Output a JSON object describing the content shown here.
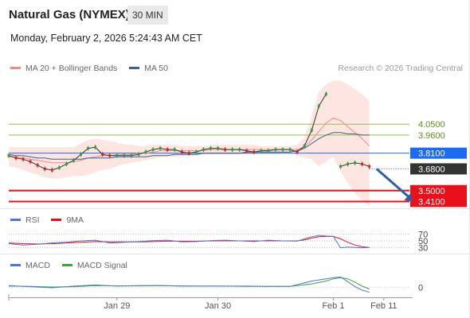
{
  "header": {
    "title": "Natural Gas (NYMEX)",
    "timeframe": "30 MIN",
    "datetime": "Monday, February 2, 2026 5:24:43 AM CET",
    "credit": "Research © 2026 Trading Central"
  },
  "colors": {
    "bollinger_fill": "#fde0dd",
    "bollinger_line": "#f08a8a",
    "ma50": "#3f5f8f",
    "candle": "#2e9e3e",
    "resistance_line": "#8fc24a",
    "pivot": "#1e6bf0",
    "support": "#e8101a",
    "current": "#333333",
    "rsi": "#4f74d8",
    "rsi_ma": "#e8101a",
    "macd": "#4f74d8",
    "macd_signal": "#3aa53a",
    "arrow": "#2f5fa3"
  },
  "chart_data": [
    {
      "type": "line",
      "name": "price",
      "legend": [
        {
          "label": "MA 20 + Bollinger Bands",
          "color": "#f08a8a"
        },
        {
          "label": "MA 50",
          "color": "#3f5f8f"
        }
      ],
      "ylim": [
        3.38,
        4.42
      ],
      "levels": [
        {
          "label": "4.0500",
          "value": 4.05,
          "kind": "resistance"
        },
        {
          "label": "3.9600",
          "value": 3.96,
          "kind": "resistance"
        },
        {
          "label": "3.8100",
          "value": 3.81,
          "kind": "pivot"
        },
        {
          "label": "3.6800",
          "value": 3.68,
          "kind": "current"
        },
        {
          "label": "3.5000",
          "value": 3.5,
          "kind": "support"
        },
        {
          "label": "3.4100",
          "value": 3.41,
          "kind": "support"
        }
      ],
      "x": [
        0,
        2,
        4,
        6,
        8,
        10,
        12,
        14,
        16,
        18,
        20,
        22,
        24,
        26,
        28,
        30,
        32,
        34,
        36,
        38,
        40,
        42,
        44,
        46,
        48,
        50,
        52,
        54,
        56,
        58,
        60,
        62,
        64,
        66,
        68,
        70,
        72,
        74,
        76,
        78,
        80,
        82,
        84,
        86,
        88
      ],
      "price": [
        3.79,
        3.77,
        3.76,
        3.74,
        3.71,
        3.68,
        3.67,
        3.69,
        3.72,
        3.75,
        3.8,
        3.85,
        3.86,
        3.8,
        3.79,
        3.79,
        3.79,
        3.79,
        3.8,
        3.82,
        3.84,
        3.85,
        3.84,
        3.84,
        3.82,
        3.81,
        3.82,
        3.84,
        3.85,
        3.85,
        3.84,
        3.84,
        3.84,
        3.83,
        3.82,
        3.83,
        3.83,
        3.84,
        3.84,
        3.84,
        3.82,
        3.87,
        4.0,
        4.2,
        4.3
      ],
      "price_tail_x": [
        92,
        94,
        96,
        98,
        100
      ],
      "price_tail": [
        3.7,
        3.72,
        3.73,
        3.72,
        3.7
      ],
      "ma20": [
        3.78,
        3.78,
        3.77,
        3.76,
        3.75,
        3.74,
        3.73,
        3.73,
        3.73,
        3.74,
        3.75,
        3.77,
        3.78,
        3.79,
        3.79,
        3.8,
        3.8,
        3.8,
        3.81,
        3.81,
        3.82,
        3.83,
        3.83,
        3.83,
        3.83,
        3.83,
        3.83,
        3.83,
        3.84,
        3.84,
        3.84,
        3.84,
        3.84,
        3.84,
        3.84,
        3.84,
        3.84,
        3.84,
        3.84,
        3.84,
        3.84,
        3.86,
        3.92,
        3.99,
        4.06
      ],
      "ma20_tail_x": [
        90,
        92,
        94,
        96,
        98,
        100
      ],
      "ma20_tail": [
        4.1,
        4.08,
        4.03,
        3.98,
        3.93,
        3.87
      ],
      "boll_upper": [
        3.86,
        3.86,
        3.86,
        3.86,
        3.86,
        3.86,
        3.86,
        3.86,
        3.86,
        3.86,
        3.89,
        3.92,
        3.93,
        3.92,
        3.91,
        3.9,
        3.88,
        3.88,
        3.87,
        3.87,
        3.88,
        3.88,
        3.88,
        3.88,
        3.87,
        3.87,
        3.87,
        3.87,
        3.88,
        3.88,
        3.88,
        3.88,
        3.88,
        3.88,
        3.88,
        3.87,
        3.87,
        3.87,
        3.87,
        3.87,
        3.88,
        3.94,
        4.12,
        4.32,
        4.38
      ],
      "boll_lower": [
        3.7,
        3.69,
        3.67,
        3.65,
        3.63,
        3.61,
        3.6,
        3.6,
        3.61,
        3.62,
        3.62,
        3.63,
        3.65,
        3.67,
        3.68,
        3.7,
        3.72,
        3.73,
        3.74,
        3.75,
        3.76,
        3.78,
        3.78,
        3.78,
        3.78,
        3.79,
        3.79,
        3.8,
        3.8,
        3.8,
        3.8,
        3.8,
        3.8,
        3.8,
        3.8,
        3.8,
        3.8,
        3.8,
        3.81,
        3.81,
        3.79,
        3.77,
        3.76,
        3.7,
        3.74
      ],
      "boll_tail_x": [
        90,
        92,
        94,
        96,
        98,
        100
      ],
      "boll_upper_tail": [
        4.41,
        4.41,
        4.38,
        4.34,
        4.3,
        4.24
      ],
      "boll_lower_tail": [
        3.78,
        3.66,
        3.56,
        3.48,
        3.42,
        3.37
      ],
      "ma50": [
        3.8,
        3.79,
        3.79,
        3.78,
        3.77,
        3.77,
        3.76,
        3.76,
        3.76,
        3.76,
        3.76,
        3.77,
        3.77,
        3.77,
        3.77,
        3.78,
        3.78,
        3.78,
        3.78,
        3.78,
        3.79,
        3.79,
        3.79,
        3.8,
        3.8,
        3.8,
        3.8,
        3.81,
        3.81,
        3.81,
        3.81,
        3.81,
        3.81,
        3.82,
        3.82,
        3.82,
        3.82,
        3.82,
        3.82,
        3.82,
        3.83,
        3.85,
        3.89,
        3.93,
        3.96
      ],
      "ma50_tail_x": [
        90,
        92,
        94,
        96,
        98,
        100
      ],
      "ma50_tail": [
        3.98,
        3.98,
        3.97,
        3.97,
        3.96,
        3.96
      ],
      "forecast": {
        "from": [
          102,
          3.68
        ],
        "to": [
          112,
          3.41
        ]
      }
    },
    {
      "type": "line",
      "name": "rsi",
      "legend": [
        {
          "label": "RSI",
          "color": "#4f74d8"
        },
        {
          "label": "9MA",
          "color": "#e8101a"
        }
      ],
      "ylim": [
        20,
        80
      ],
      "levels": [
        {
          "label": "70",
          "value": 70
        },
        {
          "label": "50",
          "value": 50
        },
        {
          "label": "30",
          "value": 30
        }
      ],
      "x": [
        0,
        4,
        8,
        12,
        16,
        20,
        24,
        28,
        32,
        36,
        40,
        44,
        48,
        52,
        56,
        60,
        64,
        68,
        72,
        76,
        80,
        82,
        84,
        86,
        88,
        90,
        92,
        94,
        96,
        98,
        100
      ],
      "values": [
        42,
        38,
        40,
        44,
        46,
        50,
        52,
        44,
        46,
        48,
        51,
        52,
        47,
        48,
        51,
        52,
        50,
        48,
        52,
        50,
        49,
        56,
        62,
        66,
        64,
        63,
        30,
        32,
        31,
        30,
        31
      ],
      "ma9": [
        44,
        42,
        41,
        42,
        44,
        46,
        48,
        47,
        47,
        47,
        48,
        49,
        49,
        49,
        50,
        50,
        50,
        50,
        50,
        50,
        50,
        53,
        58,
        62,
        63,
        63,
        56,
        46,
        38,
        33,
        31
      ]
    },
    {
      "type": "line",
      "name": "macd",
      "legend": [
        {
          "label": "MACD",
          "color": "#4f74d8"
        },
        {
          "label": "MACD Signal",
          "color": "#3aa53a"
        }
      ],
      "ylim": [
        -0.03,
        0.06
      ],
      "levels": [
        {
          "label": "0",
          "value": 0
        }
      ],
      "x": [
        0,
        6,
        12,
        18,
        24,
        30,
        36,
        42,
        48,
        54,
        60,
        66,
        72,
        78,
        84,
        88,
        90,
        92,
        94,
        96,
        98,
        100
      ],
      "values": [
        0.006,
        0.002,
        -0.002,
        0.004,
        0.008,
        0.004,
        0.006,
        0.006,
        0.004,
        0.004,
        0.004,
        0.003,
        0.003,
        0.003,
        0.022,
        0.03,
        0.034,
        0.036,
        0.02,
        0.002,
        -0.01,
        -0.018
      ],
      "signal": [
        0.004,
        0.003,
        0.001,
        0.002,
        0.006,
        0.005,
        0.005,
        0.006,
        0.005,
        0.004,
        0.004,
        0.004,
        0.003,
        0.003,
        0.012,
        0.022,
        0.03,
        0.034,
        0.03,
        0.018,
        0.004,
        -0.006
      ]
    }
  ],
  "xaxis": {
    "xlim": [
      0,
      112
    ],
    "ticks": [
      {
        "label": "Jan 29",
        "x": 30
      },
      {
        "label": "Jan 30",
        "x": 58
      },
      {
        "label": "Feb 1",
        "x": 90
      },
      {
        "label": "Feb 11",
        "x": 104
      }
    ]
  }
}
